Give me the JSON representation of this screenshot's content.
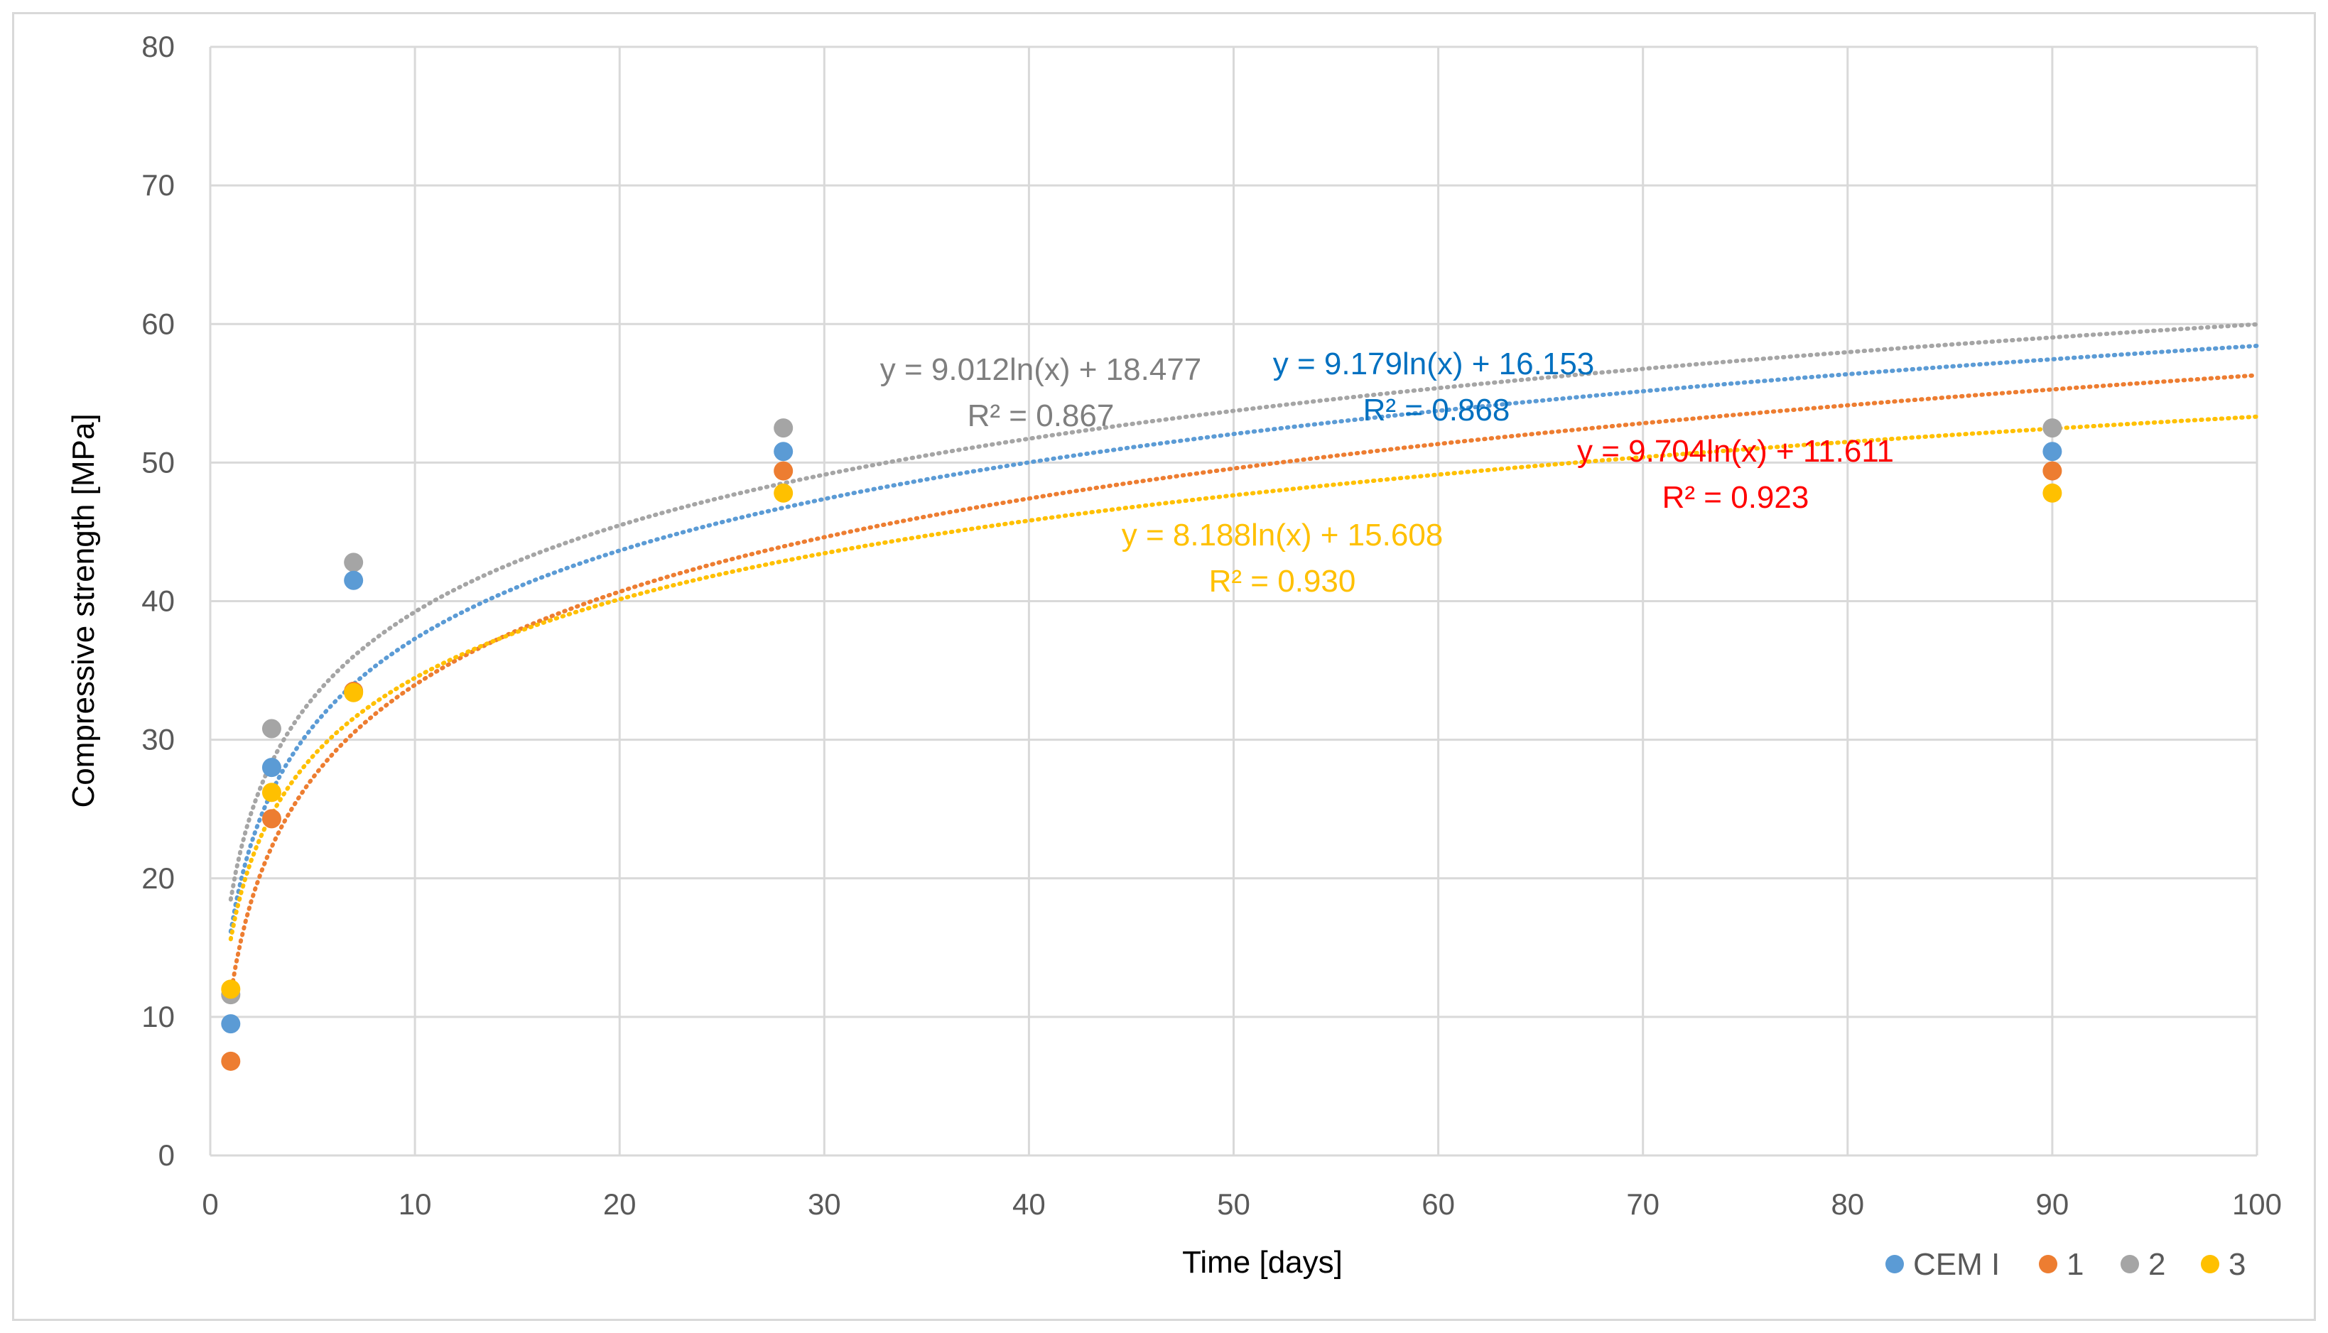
{
  "chart_data": {
    "type": "scatter",
    "title": "",
    "xlabel": "Time [days]",
    "ylabel": "Compressive strength [MPa]",
    "xlim": [
      0,
      100
    ],
    "ylim": [
      0,
      80
    ],
    "xticks": [
      "0",
      "10",
      "20",
      "30",
      "40",
      "50",
      "60",
      "70",
      "80",
      "90",
      "100"
    ],
    "yticks": [
      "0",
      "10",
      "20",
      "30",
      "40",
      "50",
      "60",
      "70",
      "80"
    ],
    "grid": true,
    "legend_position": "bottom-right",
    "series": [
      {
        "name": "CEM I",
        "color": "#5B9BD5",
        "x": [
          1,
          3,
          7,
          28,
          90
        ],
        "y": [
          9.5,
          28.0,
          41.5,
          50.8,
          50.8
        ],
        "trend": {
          "type": "log",
          "a": 9.179,
          "b": 16.153
        },
        "equation": "y = 9.179ln(x) + 16.153",
        "r2": "R² = 0.868",
        "label_color": "#0070C0"
      },
      {
        "name": "1",
        "color": "#ED7D31",
        "x": [
          1,
          3,
          7,
          28,
          90
        ],
        "y": [
          6.8,
          24.3,
          33.5,
          49.4,
          49.4
        ],
        "trend": {
          "type": "log",
          "a": 9.704,
          "b": 11.611
        },
        "equation": "y = 9.704ln(x) + 11.611",
        "r2": "R² = 0.923",
        "label_color": "#FF0000"
      },
      {
        "name": "2",
        "color": "#A5A5A5",
        "x": [
          1,
          3,
          7,
          28,
          90
        ],
        "y": [
          11.6,
          30.8,
          42.8,
          52.5,
          52.5
        ],
        "trend": {
          "type": "log",
          "a": 9.012,
          "b": 18.477
        },
        "equation": "y = 9.012ln(x) + 18.477",
        "r2": "R² = 0.867",
        "label_color": "#7F7F7F"
      },
      {
        "name": "3",
        "color": "#FFC000",
        "x": [
          1,
          3,
          7,
          28,
          90
        ],
        "y": [
          12.0,
          26.2,
          33.4,
          47.8,
          47.8
        ],
        "trend": {
          "type": "log",
          "a": 8.188,
          "b": 15.608
        },
        "equation": "y = 8.188ln(x) + 15.608",
        "r2": "R² = 0.930",
        "label_color": "#FFC000"
      }
    ]
  }
}
